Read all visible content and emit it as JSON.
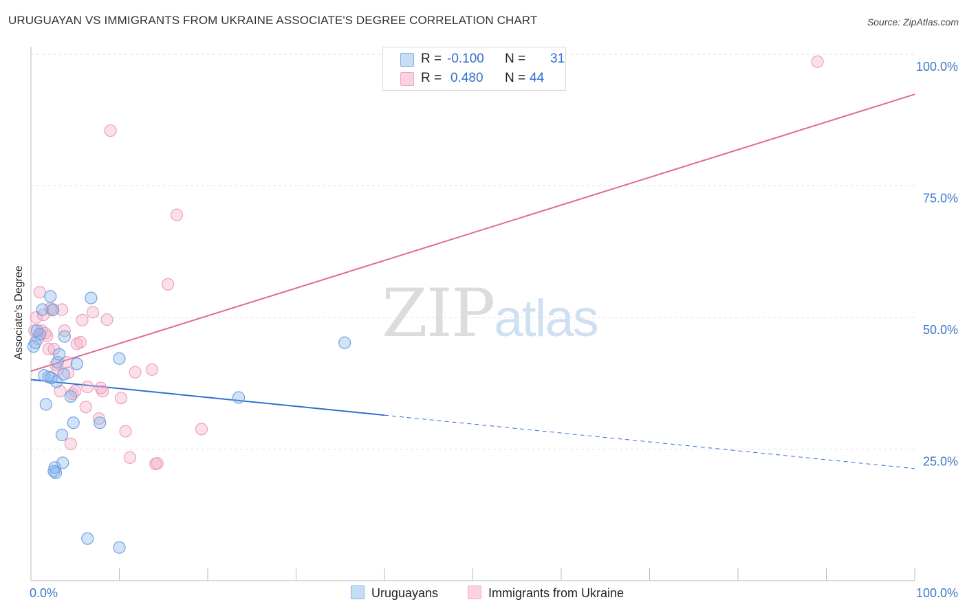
{
  "header": {
    "title": "URUGUAYAN VS IMMIGRANTS FROM UKRAINE ASSOCIATE'S DEGREE CORRELATION CHART",
    "source": "Source: ZipAtlas.com"
  },
  "watermark": {
    "zip": "ZIP",
    "atlas": "atlas"
  },
  "legend": {
    "row1": {
      "r_label": "R =",
      "r_value": "-0.100",
      "n_label": "N =",
      "n_value": "31"
    },
    "row2": {
      "r_label": "R =",
      "r_value": "0.480",
      "n_label": "N =",
      "n_value": "44"
    }
  },
  "bottom_legend": {
    "series1": "Uruguayans",
    "series2": "Immigrants from Ukraine"
  },
  "chart_data": {
    "type": "scatter",
    "title": "URUGUAYAN VS IMMIGRANTS FROM UKRAINE ASSOCIATE'S DEGREE CORRELATION CHART",
    "xlabel": "",
    "ylabel": "Associate's Degree",
    "xlim": [
      0,
      100
    ],
    "ylim": [
      0,
      100
    ],
    "x_tick_labels": [
      "0.0%",
      "100.0%"
    ],
    "y_ticks": [
      25,
      50,
      75,
      100
    ],
    "y_tick_labels": [
      "25.0%",
      "50.0%",
      "75.0%",
      "100.0%"
    ],
    "colors": {
      "uruguayans": "#7fb0ea",
      "ukraine": "#f2a7c0",
      "uruguayans_line": "#2f6fd0",
      "ukraine_line": "#e06a93"
    },
    "series": [
      {
        "name": "Uruguayans",
        "r": -0.1,
        "n": 31,
        "trend": {
          "x0": 0,
          "y0": 38.2,
          "x1": 100,
          "y1": 21.3,
          "solid_until_x": 40
        },
        "points": [
          [
            0.3,
            44.5
          ],
          [
            0.5,
            45.2
          ],
          [
            0.7,
            47.5
          ],
          [
            1.0,
            46.8
          ],
          [
            1.3,
            51.5
          ],
          [
            1.5,
            39.0
          ],
          [
            1.7,
            33.5
          ],
          [
            2.0,
            38.7
          ],
          [
            2.2,
            54.0
          ],
          [
            2.5,
            51.5
          ],
          [
            2.3,
            38.5
          ],
          [
            2.6,
            20.8
          ],
          [
            2.7,
            21.5
          ],
          [
            2.8,
            20.5
          ],
          [
            2.9,
            37.8
          ],
          [
            3.0,
            41.5
          ],
          [
            3.2,
            43.0
          ],
          [
            3.5,
            27.7
          ],
          [
            3.6,
            22.4
          ],
          [
            3.7,
            39.2
          ],
          [
            3.8,
            46.4
          ],
          [
            4.5,
            35.0
          ],
          [
            4.8,
            30.0
          ],
          [
            5.2,
            41.2
          ],
          [
            6.4,
            8.0
          ],
          [
            6.8,
            53.7
          ],
          [
            7.8,
            30.0
          ],
          [
            10.0,
            6.3
          ],
          [
            10.0,
            42.2
          ],
          [
            23.5,
            34.8
          ],
          [
            35.5,
            45.2
          ]
        ]
      },
      {
        "name": "Immigrants from Ukraine",
        "r": 0.48,
        "n": 44,
        "trend": {
          "x0": 0,
          "y0": 39.8,
          "x1": 100,
          "y1": 92.4
        },
        "points": [
          [
            0.4,
            47.5
          ],
          [
            0.6,
            50.0
          ],
          [
            0.8,
            46.0
          ],
          [
            1.0,
            54.8
          ],
          [
            1.2,
            47.5
          ],
          [
            1.4,
            50.5
          ],
          [
            1.6,
            47.0
          ],
          [
            1.8,
            46.5
          ],
          [
            2.0,
            44.0
          ],
          [
            2.2,
            51.7
          ],
          [
            2.4,
            51.4
          ],
          [
            2.6,
            44.0
          ],
          [
            2.8,
            41.0
          ],
          [
            3.0,
            40.1
          ],
          [
            3.3,
            36.0
          ],
          [
            3.5,
            51.5
          ],
          [
            3.8,
            47.5
          ],
          [
            4.0,
            41.5
          ],
          [
            4.2,
            39.5
          ],
          [
            4.5,
            26.0
          ],
          [
            4.7,
            35.5
          ],
          [
            5.0,
            36.0
          ],
          [
            5.2,
            45.0
          ],
          [
            5.6,
            45.3
          ],
          [
            5.8,
            49.5
          ],
          [
            6.2,
            33.0
          ],
          [
            6.4,
            36.8
          ],
          [
            7.0,
            51.0
          ],
          [
            7.7,
            30.8
          ],
          [
            7.9,
            36.6
          ],
          [
            8.1,
            36.0
          ],
          [
            8.6,
            49.6
          ],
          [
            9.0,
            85.5
          ],
          [
            10.2,
            34.7
          ],
          [
            10.7,
            28.4
          ],
          [
            11.2,
            23.4
          ],
          [
            11.8,
            39.6
          ],
          [
            13.7,
            40.1
          ],
          [
            14.1,
            22.2
          ],
          [
            14.3,
            22.3
          ],
          [
            15.5,
            56.3
          ],
          [
            16.5,
            69.5
          ],
          [
            19.3,
            28.8
          ],
          [
            89.0,
            98.6
          ]
        ]
      }
    ]
  }
}
